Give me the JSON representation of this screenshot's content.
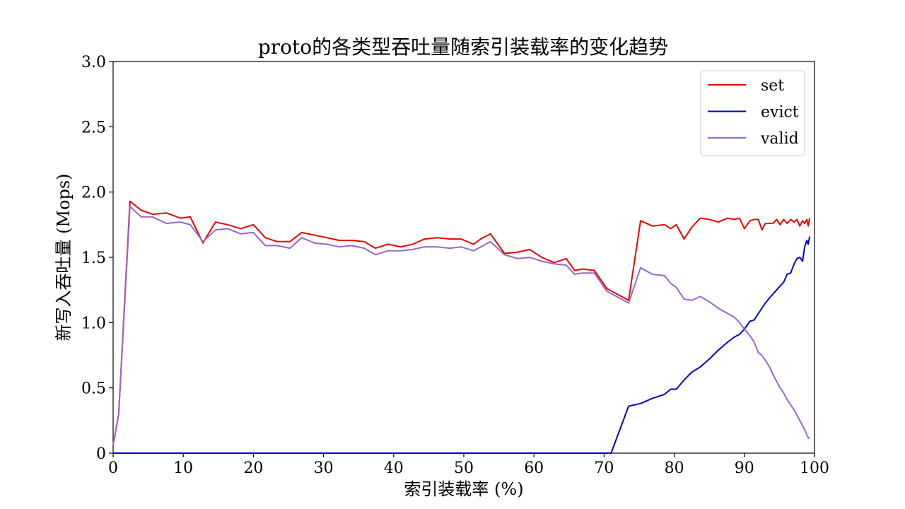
{
  "chart_data": {
    "type": "line",
    "title": "proto的各类型吞吐量随索引装载率的变化趋势",
    "xlabel": "索引装载率 (%)",
    "ylabel": "新写入吞吐量 (Mops)",
    "xlim": [
      0,
      100
    ],
    "ylim": [
      0,
      3.0
    ],
    "xticks": [
      0,
      10,
      20,
      30,
      40,
      50,
      60,
      70,
      80,
      90,
      100
    ],
    "xtick_labels": [
      "0",
      "10",
      "20",
      "30",
      "40",
      "50",
      "60",
      "70",
      "80",
      "90",
      "100"
    ],
    "yticks": [
      0,
      0.5,
      1.0,
      1.5,
      2.0,
      2.5,
      3.0
    ],
    "ytick_labels": [
      "0",
      "0.5",
      "1.0",
      "1.5",
      "2.0",
      "2.5",
      "3.0"
    ],
    "grid": false,
    "legend_position": "top-right",
    "series": [
      {
        "name": "set",
        "color": "#ee0000",
        "x": [
          0,
          0.8,
          2.4,
          4.0,
          5.6,
          7.6,
          9.6,
          11.0,
          12.8,
          14.6,
          16.3,
          18.2,
          20.0,
          21.7,
          23.4,
          25.2,
          26.9,
          28.7,
          30.5,
          32.2,
          34.0,
          35.8,
          37.4,
          39.2,
          41.0,
          42.7,
          44.4,
          46.2,
          48.0,
          49.6,
          51.4,
          52.4,
          53.8,
          55.8,
          57.7,
          59.4,
          61.1,
          62.9,
          64.6,
          65.8,
          66.9,
          68.6,
          70.4,
          73.5,
          75.2,
          76.9,
          78.6,
          79.5,
          80.3,
          81.4,
          82.5,
          83.7,
          85.0,
          86.3,
          87.6,
          88.6,
          89.3,
          90.0,
          90.8,
          91.4,
          92.0,
          92.5,
          93.0,
          93.6,
          94.1,
          94.6,
          95.1,
          95.6,
          96.1,
          96.6,
          97.1,
          97.5,
          97.9,
          98.3,
          98.6,
          98.9,
          99.1,
          99.3
        ],
        "values": [
          0.06,
          0.3,
          1.93,
          1.86,
          1.83,
          1.84,
          1.8,
          1.81,
          1.61,
          1.77,
          1.75,
          1.72,
          1.75,
          1.65,
          1.62,
          1.62,
          1.69,
          1.67,
          1.65,
          1.63,
          1.63,
          1.62,
          1.57,
          1.6,
          1.58,
          1.6,
          1.64,
          1.65,
          1.64,
          1.64,
          1.6,
          1.64,
          1.68,
          1.53,
          1.54,
          1.56,
          1.5,
          1.46,
          1.49,
          1.4,
          1.41,
          1.4,
          1.26,
          1.17,
          1.78,
          1.74,
          1.75,
          1.72,
          1.75,
          1.64,
          1.73,
          1.8,
          1.79,
          1.77,
          1.8,
          1.79,
          1.8,
          1.72,
          1.78,
          1.79,
          1.79,
          1.71,
          1.76,
          1.76,
          1.76,
          1.79,
          1.75,
          1.79,
          1.76,
          1.79,
          1.77,
          1.79,
          1.74,
          1.78,
          1.76,
          1.79,
          1.74,
          1.8
        ]
      },
      {
        "name": "evict",
        "color": "#0000cc",
        "x": [
          0,
          71.0,
          73.5,
          75.2,
          76.9,
          78.6,
          79.5,
          80.3,
          81.4,
          82.5,
          83.7,
          85.0,
          86.3,
          87.6,
          88.6,
          89.3,
          90.0,
          90.8,
          91.4,
          92.0,
          92.5,
          93.0,
          93.6,
          94.1,
          94.6,
          95.1,
          95.6,
          96.1,
          96.6,
          97.1,
          97.5,
          97.9,
          98.3,
          98.6,
          98.9,
          99.1,
          99.3
        ],
        "values": [
          0,
          0,
          0.36,
          0.38,
          0.42,
          0.45,
          0.49,
          0.49,
          0.56,
          0.62,
          0.66,
          0.72,
          0.79,
          0.85,
          0.89,
          0.91,
          0.95,
          1.01,
          1.02,
          1.07,
          1.11,
          1.15,
          1.19,
          1.22,
          1.25,
          1.28,
          1.31,
          1.37,
          1.38,
          1.45,
          1.49,
          1.5,
          1.47,
          1.58,
          1.63,
          1.6,
          1.66
        ]
      },
      {
        "name": "valid",
        "color": "#9966cc",
        "x": [
          0,
          0.8,
          2.4,
          4.0,
          5.6,
          7.6,
          9.6,
          11.0,
          12.8,
          14.6,
          16.3,
          18.2,
          20.0,
          21.7,
          23.4,
          25.2,
          26.9,
          28.7,
          30.5,
          32.2,
          34.0,
          35.8,
          37.4,
          39.2,
          41.0,
          42.7,
          44.4,
          46.2,
          48.0,
          49.6,
          51.4,
          52.4,
          53.8,
          55.8,
          57.7,
          59.4,
          61.1,
          62.9,
          64.6,
          65.8,
          66.9,
          68.6,
          70.4,
          73.5,
          75.2,
          76.9,
          78.6,
          79.5,
          80.3,
          81.4,
          82.5,
          83.7,
          85.0,
          86.3,
          87.6,
          88.6,
          89.3,
          90.0,
          90.8,
          91.4,
          92.0,
          92.5,
          93.0,
          93.6,
          94.1,
          94.6,
          95.1,
          95.6,
          96.1,
          96.6,
          97.1,
          97.5,
          97.9,
          98.3,
          98.6,
          98.9,
          99.1,
          99.3
        ],
        "values": [
          0.06,
          0.3,
          1.89,
          1.81,
          1.81,
          1.76,
          1.77,
          1.75,
          1.62,
          1.71,
          1.72,
          1.68,
          1.69,
          1.59,
          1.59,
          1.57,
          1.65,
          1.61,
          1.6,
          1.58,
          1.59,
          1.57,
          1.52,
          1.55,
          1.55,
          1.56,
          1.58,
          1.58,
          1.57,
          1.58,
          1.55,
          1.58,
          1.62,
          1.52,
          1.49,
          1.5,
          1.47,
          1.45,
          1.44,
          1.37,
          1.38,
          1.38,
          1.24,
          1.15,
          1.42,
          1.37,
          1.36,
          1.3,
          1.27,
          1.18,
          1.17,
          1.2,
          1.16,
          1.11,
          1.07,
          1.04,
          1.0,
          0.95,
          0.9,
          0.85,
          0.77,
          0.75,
          0.71,
          0.66,
          0.6,
          0.55,
          0.5,
          0.46,
          0.41,
          0.37,
          0.33,
          0.29,
          0.25,
          0.21,
          0.18,
          0.14,
          0.12,
          0.11
        ]
      }
    ]
  }
}
